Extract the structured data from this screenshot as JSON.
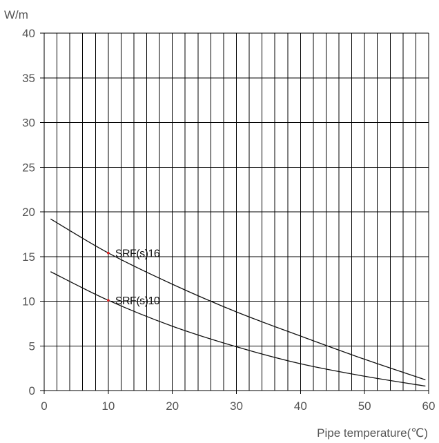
{
  "chart_data": {
    "type": "line",
    "xlabel": "Pipe temperature(℃)",
    "ylabel": "W/m",
    "xlim": [
      0,
      60
    ],
    "ylim": [
      0,
      40
    ],
    "xticks": [
      0,
      10,
      20,
      30,
      40,
      50,
      60
    ],
    "yticks": [
      0,
      5,
      10,
      15,
      20,
      25,
      30,
      35,
      40
    ],
    "grid": true,
    "legend": "none",
    "colors": {
      "line": "#111111",
      "grid": "#000000",
      "marker": "#e02020",
      "tick_text": "#555555"
    },
    "series": [
      {
        "name": "SRF(s)16",
        "label_at": [
          10,
          15.4
        ],
        "x": [
          1,
          10,
          20,
          30,
          40,
          50,
          59.5
        ],
        "y": [
          19.2,
          15.4,
          11.9,
          8.8,
          6.1,
          3.5,
          1.2
        ]
      },
      {
        "name": "SRF(s)10",
        "label_at": [
          10,
          10.1
        ],
        "x": [
          1,
          10,
          20,
          30,
          40,
          50,
          59.5
        ],
        "y": [
          13.3,
          10.1,
          7.2,
          4.9,
          3.0,
          1.6,
          0.5
        ]
      }
    ]
  }
}
